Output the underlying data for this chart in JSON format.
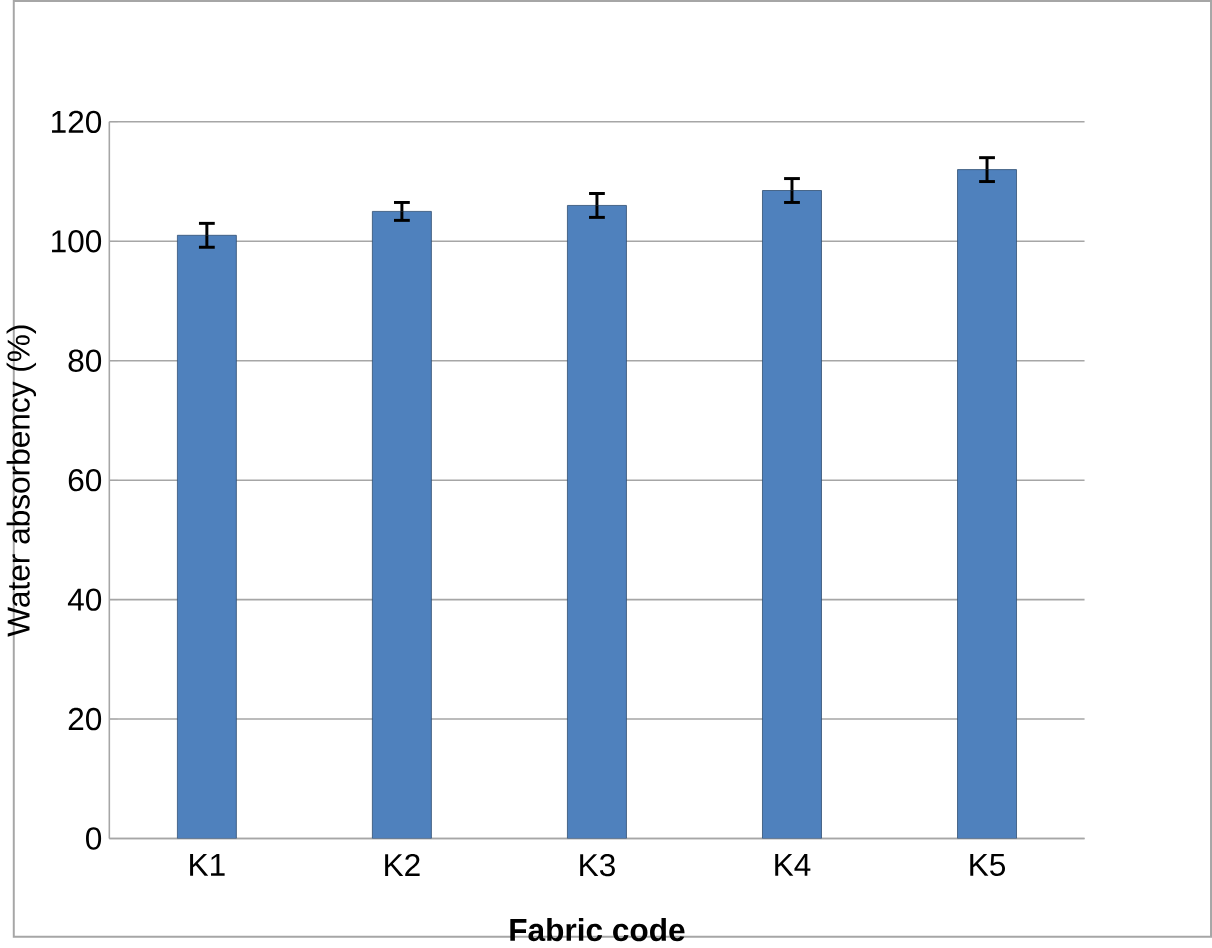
{
  "chart_data": {
    "type": "bar",
    "xlabel": "Fabric code",
    "ylabel": "Water absorbency (%)",
    "categories": [
      "K1",
      "K2",
      "K3",
      "K4",
      "K5"
    ],
    "values": [
      101,
      105,
      106,
      108.5,
      112
    ],
    "errors": [
      2,
      1.5,
      2,
      2,
      2
    ],
    "color": "#4f81bd",
    "ylim": [
      0,
      120
    ],
    "yticks": [
      0,
      20,
      40,
      60,
      80,
      100,
      120
    ],
    "grid": "y"
  }
}
